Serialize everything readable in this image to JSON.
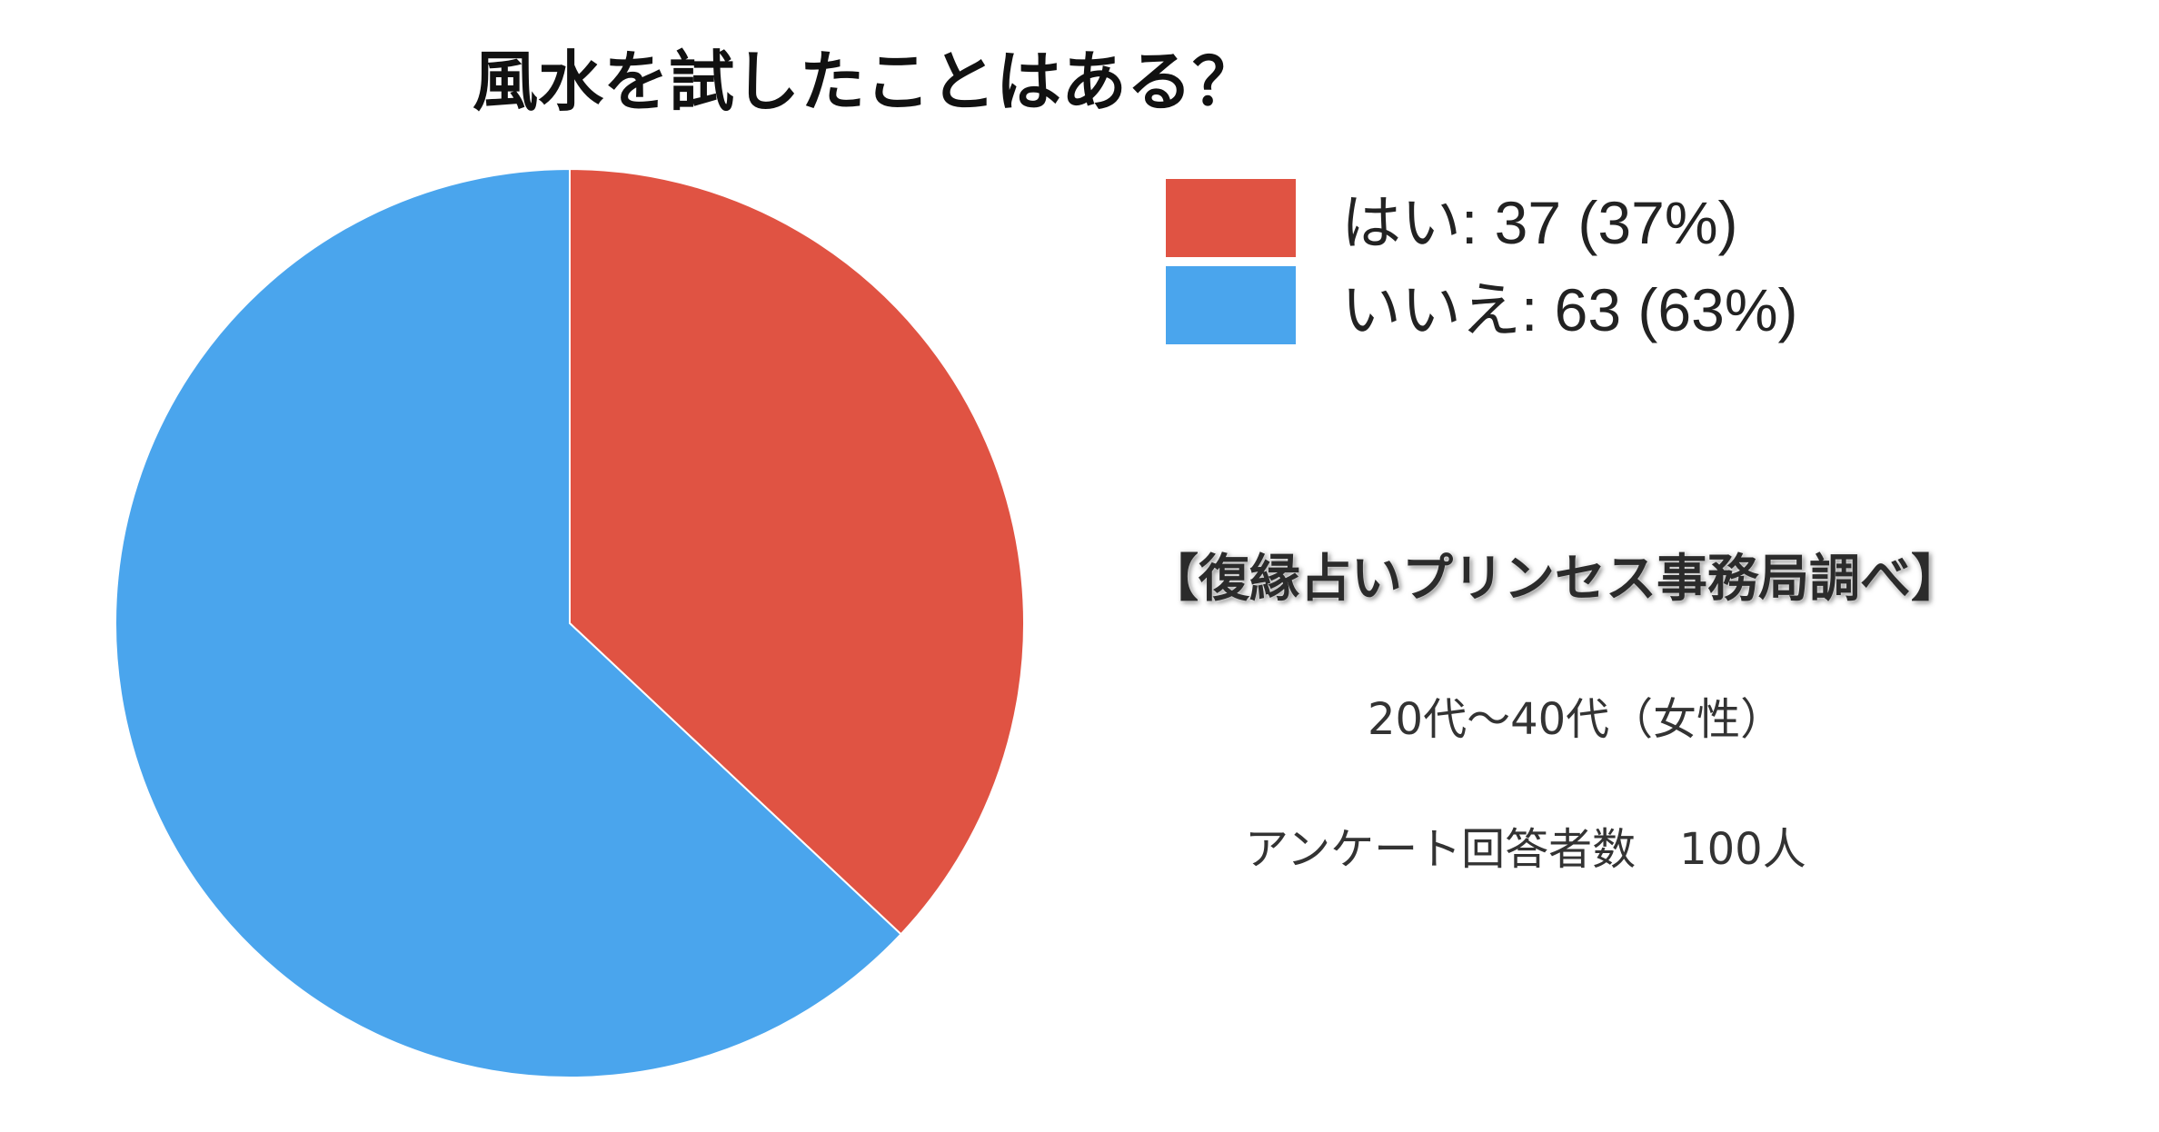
{
  "chart_data": {
    "type": "pie",
    "title": "風水を試したことはある？",
    "slices": [
      {
        "label": "はい",
        "value": 37,
        "percent": 37,
        "color": "#E05343",
        "legend_text": "はい: 37 (37%)"
      },
      {
        "label": "いいえ",
        "value": 63,
        "percent": 63,
        "color": "#4AA5ED",
        "legend_text": "いいえ: 63 (63%)"
      }
    ],
    "start_angle_deg": 0,
    "direction": "clockwise",
    "slice_border_color": "#ffffff",
    "legend_placement": "right"
  },
  "annotations": {
    "source": "【復縁占いプリンセス事務局調べ】",
    "age_range": "20代〜40代（女性）",
    "respondents": "アンケート回答者数　100人"
  }
}
